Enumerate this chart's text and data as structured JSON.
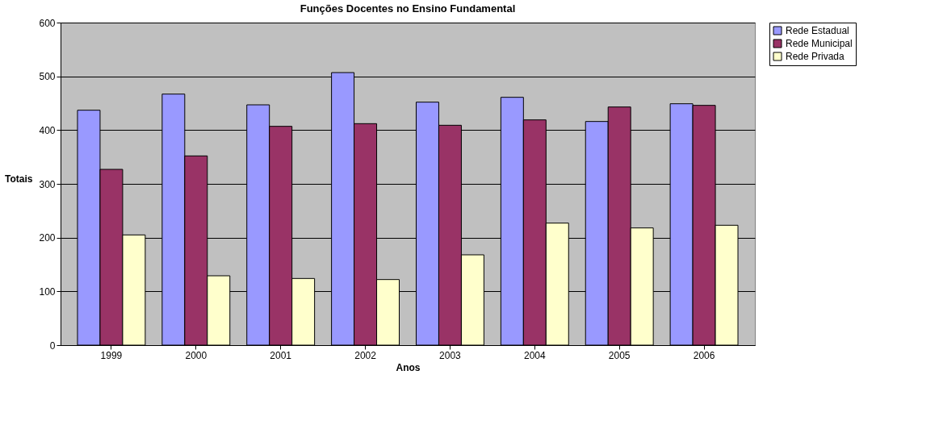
{
  "chart_data": {
    "type": "bar",
    "title": "Funções Docentes no Ensino Fundamental",
    "xlabel": "Anos",
    "ylabel": "Totais",
    "categories": [
      "1999",
      "2000",
      "2001",
      "2002",
      "2003",
      "2004",
      "2005",
      "2006"
    ],
    "series": [
      {
        "name": "Rede Estadual",
        "color": "#9999ff",
        "values": [
          437,
          467,
          447,
          507,
          452,
          461,
          416,
          449
        ]
      },
      {
        "name": "Rede Municipal",
        "color": "#993366",
        "values": [
          327,
          352,
          407,
          412,
          409,
          419,
          443,
          446
        ]
      },
      {
        "name": "Rede Privada",
        "color": "#ffffcc",
        "values": [
          205,
          129,
          124,
          122,
          168,
          227,
          218,
          223
        ]
      }
    ],
    "ylim": [
      0,
      600
    ],
    "yticks": [
      0,
      100,
      200,
      300,
      400,
      500,
      600
    ],
    "grid": "y",
    "legend": "right"
  }
}
